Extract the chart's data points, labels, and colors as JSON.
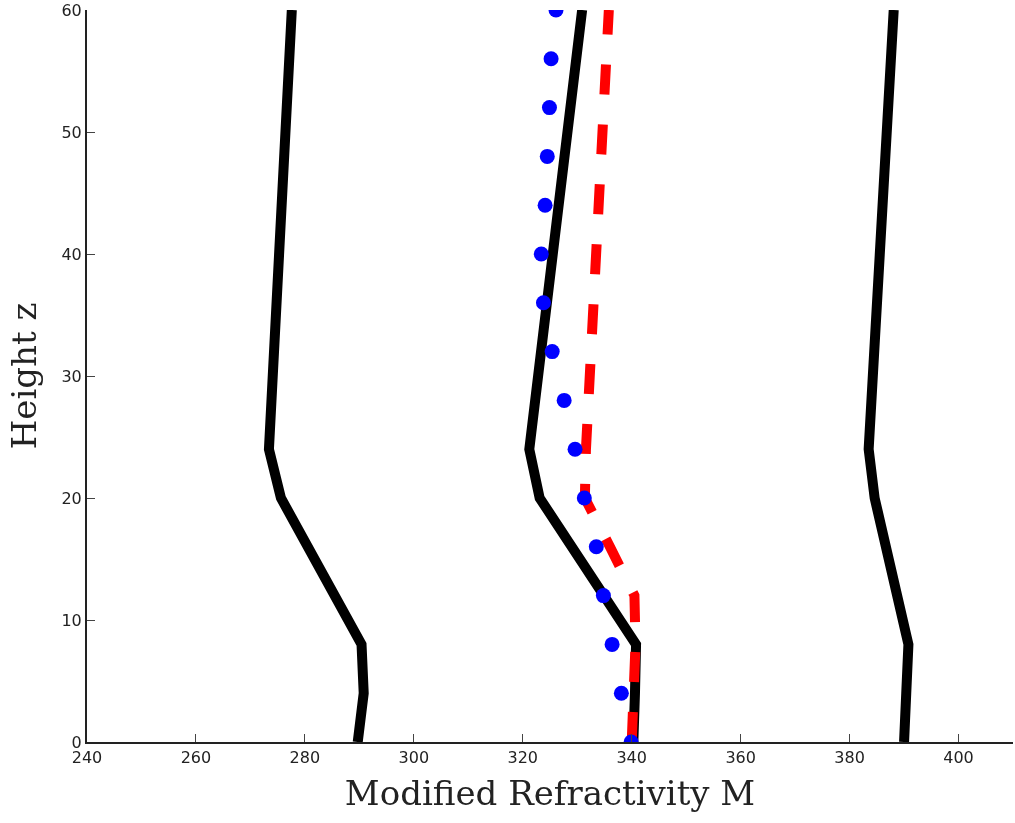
{
  "chart_data": {
    "type": "line",
    "xlabel": "Modified Refractivity M",
    "ylabel": "Height z",
    "xlim": [
      240,
      410
    ],
    "xticks": [
      240,
      260,
      280,
      300,
      320,
      340,
      360,
      380,
      400
    ],
    "ylim": [
      0,
      60
    ],
    "yticks": [
      0,
      10,
      20,
      30,
      40,
      50,
      60
    ],
    "series": [
      {
        "color": "#000000",
        "line_style": "solid",
        "x": [
          289.7,
          290.8,
          290.4,
          275.6,
          273.4,
          277.6
        ],
        "values": [
          0,
          4,
          8,
          20,
          24,
          60
        ]
      },
      {
        "color": "#000000",
        "line_style": "solid",
        "x": [
          340.3,
          340.6,
          340.8,
          323.1,
          321.2,
          330.9
        ],
        "values": [
          0,
          4,
          8,
          20,
          24,
          60
        ]
      },
      {
        "color": "#000000",
        "line_style": "solid",
        "x": [
          390.0,
          390.4,
          390.8,
          384.6,
          383.5,
          388.1
        ],
        "values": [
          0,
          4,
          8,
          20,
          24,
          60
        ]
      },
      {
        "type": "scatter",
        "marker": "circle",
        "color": "#0000ff",
        "x": [
          339.9,
          338.1,
          336.4,
          334.8,
          333.5,
          331.3,
          329.6,
          327.6,
          325.4,
          323.8,
          323.4,
          324.1,
          324.5,
          324.9,
          325.2,
          326.1
        ],
        "values": [
          0,
          4,
          8,
          12,
          16,
          20,
          24,
          28,
          32,
          36,
          40,
          44,
          48,
          52,
          56,
          60
        ]
      },
      {
        "color": "#ff0000",
        "line_style": "dashed",
        "x": [
          340.0,
          340.7,
          340.5,
          336.0,
          331.4,
          331.6,
          335.8
        ],
        "values": [
          0,
          8,
          12,
          16,
          20,
          24,
          60
        ]
      }
    ]
  }
}
